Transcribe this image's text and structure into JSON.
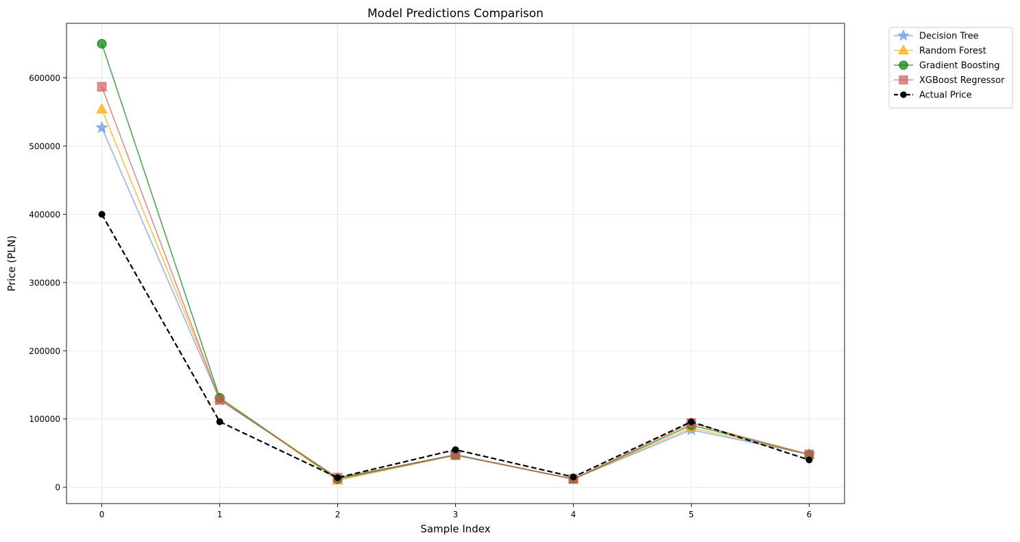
{
  "chart_data": {
    "type": "line",
    "title": "Model Predictions Comparison",
    "xlabel": "Sample Index",
    "ylabel": "Price (PLN)",
    "x": [
      0,
      1,
      2,
      3,
      4,
      5,
      6
    ],
    "xlim": [
      -0.3,
      6.3
    ],
    "ylim": [
      -24000,
      680000
    ],
    "x_ticks": [
      0,
      1,
      2,
      3,
      4,
      5,
      6
    ],
    "y_ticks": [
      0,
      100000,
      200000,
      300000,
      400000,
      500000,
      600000
    ],
    "x_tick_labels": [
      "0",
      "1",
      "2",
      "3",
      "4",
      "5",
      "6"
    ],
    "y_tick_labels": [
      "0",
      "100000",
      "200000",
      "300000",
      "400000",
      "500000",
      "600000"
    ],
    "grid": true,
    "legend_position": "outside-top-right",
    "series": [
      {
        "name": "Decision Tree",
        "values": [
          527000,
          128000,
          13000,
          48000,
          12000,
          84000,
          48000
        ],
        "color": "#6495ED",
        "marker": "star",
        "line_style": "solid"
      },
      {
        "name": "Random Forest",
        "values": [
          554000,
          130000,
          10000,
          47000,
          12000,
          87000,
          48000
        ],
        "color": "#FFA500",
        "marker": "triangle",
        "line_style": "solid"
      },
      {
        "name": "Gradient Boosting",
        "values": [
          650000,
          131000,
          12000,
          47000,
          12000,
          91000,
          48000
        ],
        "color": "#008000",
        "marker": "circle",
        "line_style": "solid"
      },
      {
        "name": "XGBoost Regressor",
        "values": [
          587000,
          128000,
          14000,
          47000,
          12000,
          94000,
          48000
        ],
        "color": "#CD5C5C",
        "marker": "square",
        "line_style": "solid"
      },
      {
        "name": "Actual Price",
        "values": [
          400000,
          96000,
          14000,
          55000,
          15000,
          96000,
          40000
        ],
        "color": "#000000",
        "marker": "dot",
        "line_style": "dashed"
      }
    ]
  }
}
